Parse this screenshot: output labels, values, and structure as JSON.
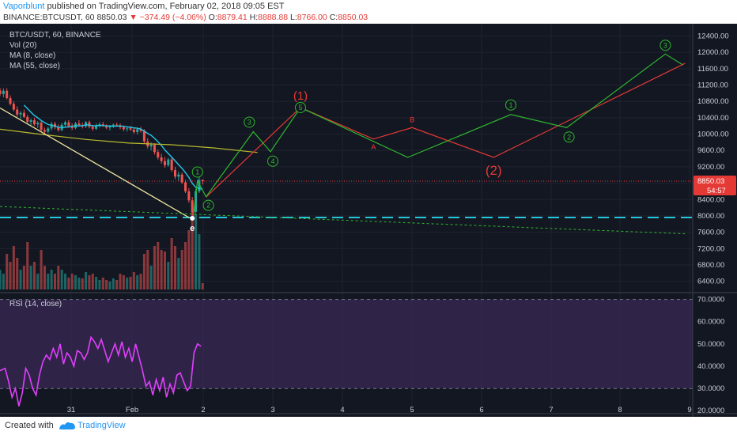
{
  "header": {
    "author": "Vaporblunt",
    "published_text": "published on TradingView.com, February 02, 2018 09:05 EST",
    "symbol": "BINANCE:BTCUSDT, 60",
    "last_price": "8850.03",
    "change": "−374.49 (−4.06%)",
    "o_label": "O:",
    "o_value": "8879.41",
    "h_label": "H:",
    "h_value": "8888.88",
    "l_label": "L:",
    "l_value": "8766.00",
    "c_label": "C:",
    "c_value": "8850.03"
  },
  "legend": {
    "title": "BTC/USDT, 60, BINANCE",
    "vol": "Vol (20)",
    "ma8": "MA (8, close)",
    "ma55": "MA (55, close)"
  },
  "rsi_legend": "RSI (14, close)",
  "price_tag": {
    "value": "8850.03",
    "countdown": "54:57"
  },
  "footer": {
    "created": "Created with",
    "brand": "TradingView"
  },
  "colors": {
    "background": "#131722",
    "bull": "#26a69a",
    "bear": "#ef5350",
    "ma8": "#22c7e8",
    "ma55": "#b9b92e",
    "rsi": "#e040fb",
    "rsi_band": "#3a2a55",
    "support": "#26c6da",
    "green_path": "#2eb82e",
    "red_path": "#e53935"
  },
  "chart_data": {
    "type": "candlestick",
    "x_ticks": [
      "31",
      "Feb",
      "2",
      "3",
      "4",
      "5",
      "6",
      "7",
      "8",
      "9"
    ],
    "y_ticks": [
      "12400.00",
      "12000.00",
      "11600.00",
      "11200.00",
      "10800.00",
      "10400.00",
      "10000.00",
      "9600.00",
      "9200.00",
      "8800.00",
      "8400.00",
      "8000.00",
      "7600.00",
      "7200.00",
      "6800.00",
      "6400.00"
    ],
    "y_range": [
      6200,
      12700
    ],
    "rsi_ticks": [
      "70.0000",
      "60.0000",
      "50.0000",
      "40.0000",
      "30.0000",
      "20.0000"
    ],
    "rsi_range": [
      19,
      72
    ],
    "rsi_levels": [
      70,
      30
    ],
    "support_level": 7960,
    "last_price": 8850.03,
    "ma55": [
      [
        30.0,
        10120
      ],
      [
        30.5,
        9990
      ],
      [
        31.0,
        9870
      ],
      [
        31.5,
        9780
      ],
      [
        32.0,
        9740
      ],
      [
        32.5,
        9660
      ],
      [
        33.0,
        9550
      ]
    ],
    "green_path_labels": [
      "1",
      "2",
      "3",
      "4",
      "5",
      "1",
      "2",
      "3"
    ],
    "green_path": [
      [
        32.25,
        7960
      ],
      [
        32.3,
        8860
      ],
      [
        32.4,
        8470
      ],
      [
        32.95,
        10060
      ],
      [
        33.15,
        9570
      ],
      [
        33.5,
        10650
      ],
      [
        34.75,
        9430
      ],
      [
        35.95,
        10480
      ],
      [
        36.6,
        10160
      ],
      [
        37.75,
        11960
      ],
      [
        37.95,
        11700
      ]
    ],
    "red_path_labels": [
      "(1)",
      "A",
      "B",
      "(2)"
    ],
    "red_path": [
      [
        32.4,
        8460
      ],
      [
        33.5,
        10650
      ],
      [
        34.35,
        9880
      ],
      [
        34.8,
        10160
      ],
      [
        35.75,
        9430
      ],
      [
        37.98,
        11730
      ]
    ],
    "wedge_upper": [
      [
        30.0,
        10640
      ],
      [
        32.2,
        7960
      ]
    ],
    "wedge_lower": [
      [
        30.0,
        8230
      ],
      [
        38.0,
        7560
      ]
    ],
    "wave_e_label": "e",
    "candles": [
      [
        30.0,
        11070,
        11130,
        10930,
        10980
      ],
      [
        30.04,
        10980,
        11120,
        10900,
        11060
      ],
      [
        30.08,
        11060,
        11120,
        10850,
        10880
      ],
      [
        30.12,
        10880,
        10950,
        10700,
        10740
      ],
      [
        30.16,
        10740,
        10800,
        10560,
        10600
      ],
      [
        30.2,
        10600,
        10680,
        10420,
        10480
      ],
      [
        30.24,
        10480,
        10560,
        10380,
        10520
      ],
      [
        30.28,
        10520,
        10600,
        10390,
        10420
      ],
      [
        30.32,
        10420,
        10470,
        10260,
        10300
      ],
      [
        30.36,
        10300,
        10380,
        10220,
        10340
      ],
      [
        30.4,
        10340,
        10400,
        10200,
        10240
      ],
      [
        30.44,
        10240,
        10320,
        10150,
        10280
      ],
      [
        30.48,
        10280,
        10330,
        10060,
        10100
      ],
      [
        30.52,
        10100,
        10160,
        9980,
        10060
      ],
      [
        30.56,
        10060,
        10180,
        10020,
        10140
      ],
      [
        30.6,
        10140,
        10300,
        10090,
        10250
      ],
      [
        30.64,
        10250,
        10300,
        10120,
        10170
      ],
      [
        30.68,
        10170,
        10240,
        10060,
        10100
      ],
      [
        30.72,
        10100,
        10280,
        10070,
        10230
      ],
      [
        30.76,
        10230,
        10330,
        10180,
        10290
      ],
      [
        30.8,
        10290,
        10340,
        10150,
        10200
      ],
      [
        30.84,
        10200,
        10260,
        10100,
        10150
      ],
      [
        30.88,
        10150,
        10300,
        10120,
        10260
      ],
      [
        30.92,
        10260,
        10340,
        10180,
        10220
      ],
      [
        30.96,
        10220,
        10280,
        10140,
        10190
      ],
      [
        31.0,
        10190,
        10320,
        10150,
        10290
      ],
      [
        31.04,
        10290,
        10330,
        10140,
        10180
      ],
      [
        31.08,
        10180,
        10230,
        10080,
        10130
      ],
      [
        31.12,
        10130,
        10260,
        10100,
        10210
      ],
      [
        31.16,
        10210,
        10290,
        10160,
        10240
      ],
      [
        31.2,
        10240,
        10300,
        10180,
        10200
      ],
      [
        31.24,
        10200,
        10240,
        10120,
        10160
      ],
      [
        31.28,
        10160,
        10220,
        10090,
        10190
      ],
      [
        31.32,
        10190,
        10260,
        10150,
        10230
      ],
      [
        31.36,
        10230,
        10280,
        10180,
        10210
      ],
      [
        31.4,
        10210,
        10260,
        10120,
        10170
      ],
      [
        31.44,
        10170,
        10210,
        10070,
        10120
      ],
      [
        31.48,
        10120,
        10180,
        10060,
        10140
      ],
      [
        31.52,
        10140,
        10200,
        10080,
        10110
      ],
      [
        31.56,
        10110,
        10160,
        10010,
        10050
      ],
      [
        31.6,
        10050,
        10150,
        9990,
        10120
      ],
      [
        31.64,
        10120,
        10180,
        10040,
        10080
      ],
      [
        31.68,
        10080,
        10120,
        9780,
        9820
      ],
      [
        31.72,
        9820,
        9900,
        9650,
        9700
      ],
      [
        31.76,
        9700,
        9800,
        9600,
        9740
      ],
      [
        31.8,
        9740,
        9780,
        9500,
        9560
      ],
      [
        31.84,
        9560,
        9620,
        9380,
        9430
      ],
      [
        31.88,
        9430,
        9520,
        9280,
        9340
      ],
      [
        31.92,
        9340,
        9440,
        9180,
        9240
      ],
      [
        31.96,
        9240,
        9420,
        9200,
        9380
      ],
      [
        32.0,
        9380,
        9440,
        9080,
        9120
      ],
      [
        32.04,
        9120,
        9200,
        8900,
        8960
      ],
      [
        32.08,
        8960,
        9080,
        8860,
        9010
      ],
      [
        32.12,
        9010,
        9060,
        8780,
        8820
      ],
      [
        32.16,
        8820,
        8880,
        8560,
        8600
      ],
      [
        32.2,
        8600,
        8680,
        8320,
        8380
      ],
      [
        32.24,
        8380,
        8460,
        7930,
        8100
      ],
      [
        32.28,
        8100,
        8660,
        8060,
        8600
      ],
      [
        32.32,
        8600,
        8960,
        8560,
        8880
      ],
      [
        32.36,
        8880,
        8890,
        8766,
        8850
      ]
    ],
    "volume": [
      [
        30.0,
        0.25,
        1
      ],
      [
        30.04,
        0.2,
        1
      ],
      [
        30.08,
        0.45,
        0
      ],
      [
        30.12,
        0.35,
        0
      ],
      [
        30.16,
        0.55,
        0
      ],
      [
        30.2,
        0.4,
        0
      ],
      [
        30.24,
        0.25,
        1
      ],
      [
        30.28,
        0.3,
        0
      ],
      [
        30.32,
        0.6,
        0
      ],
      [
        30.36,
        0.3,
        1
      ],
      [
        30.4,
        0.35,
        0
      ],
      [
        30.44,
        0.2,
        1
      ],
      [
        30.48,
        0.5,
        0
      ],
      [
        30.52,
        0.3,
        0
      ],
      [
        30.56,
        0.2,
        1
      ],
      [
        30.6,
        0.25,
        1
      ],
      [
        30.64,
        0.2,
        0
      ],
      [
        30.68,
        0.3,
        0
      ],
      [
        30.72,
        0.25,
        1
      ],
      [
        30.76,
        0.2,
        1
      ],
      [
        30.8,
        0.15,
        0
      ],
      [
        30.84,
        0.2,
        0
      ],
      [
        30.88,
        0.18,
        1
      ],
      [
        30.92,
        0.15,
        1
      ],
      [
        30.96,
        0.14,
        0
      ],
      [
        31.0,
        0.22,
        1
      ],
      [
        31.04,
        0.18,
        0
      ],
      [
        31.08,
        0.2,
        0
      ],
      [
        31.12,
        0.16,
        1
      ],
      [
        31.16,
        0.12,
        1
      ],
      [
        31.2,
        0.15,
        0
      ],
      [
        31.24,
        0.12,
        0
      ],
      [
        31.28,
        0.1,
        1
      ],
      [
        31.32,
        0.14,
        1
      ],
      [
        31.36,
        0.12,
        0
      ],
      [
        31.4,
        0.2,
        0
      ],
      [
        31.44,
        0.18,
        0
      ],
      [
        31.48,
        0.15,
        1
      ],
      [
        31.52,
        0.16,
        0
      ],
      [
        31.56,
        0.22,
        0
      ],
      [
        31.6,
        0.18,
        1
      ],
      [
        31.64,
        0.2,
        0
      ],
      [
        31.68,
        0.45,
        0
      ],
      [
        31.72,
        0.5,
        0
      ],
      [
        31.76,
        0.3,
        1
      ],
      [
        31.8,
        0.55,
        0
      ],
      [
        31.84,
        0.6,
        0
      ],
      [
        31.88,
        0.5,
        0
      ],
      [
        31.92,
        0.48,
        0
      ],
      [
        31.96,
        0.35,
        1
      ],
      [
        32.0,
        0.65,
        0
      ],
      [
        32.04,
        0.55,
        0
      ],
      [
        32.08,
        0.4,
        1
      ],
      [
        32.12,
        0.5,
        0
      ],
      [
        32.16,
        0.6,
        0
      ],
      [
        32.2,
        0.75,
        0
      ],
      [
        32.24,
        1.0,
        0
      ],
      [
        32.28,
        0.95,
        1
      ],
      [
        32.32,
        0.7,
        1
      ],
      [
        32.36,
        0.08,
        0
      ]
    ],
    "rsi": [
      [
        30.0,
        38
      ],
      [
        30.06,
        39
      ],
      [
        30.1,
        33
      ],
      [
        30.14,
        26
      ],
      [
        30.18,
        30
      ],
      [
        30.22,
        22
      ],
      [
        30.26,
        28
      ],
      [
        30.3,
        39
      ],
      [
        30.34,
        36
      ],
      [
        30.38,
        30
      ],
      [
        30.42,
        27
      ],
      [
        30.46,
        36
      ],
      [
        30.5,
        42
      ],
      [
        30.54,
        45
      ],
      [
        30.58,
        43
      ],
      [
        30.62,
        48
      ],
      [
        30.66,
        44
      ],
      [
        30.7,
        50
      ],
      [
        30.74,
        41
      ],
      [
        30.78,
        46
      ],
      [
        30.82,
        44
      ],
      [
        30.86,
        40
      ],
      [
        30.9,
        47
      ],
      [
        30.94,
        46
      ],
      [
        30.98,
        43
      ],
      [
        31.02,
        46
      ],
      [
        31.06,
        53
      ],
      [
        31.1,
        51
      ],
      [
        31.14,
        48
      ],
      [
        31.18,
        52
      ],
      [
        31.22,
        47
      ],
      [
        31.26,
        42
      ],
      [
        31.3,
        46
      ],
      [
        31.34,
        50
      ],
      [
        31.38,
        45
      ],
      [
        31.42,
        51
      ],
      [
        31.46,
        44
      ],
      [
        31.5,
        48
      ],
      [
        31.54,
        42
      ],
      [
        31.58,
        50
      ],
      [
        31.62,
        44
      ],
      [
        31.66,
        38
      ],
      [
        31.7,
        31
      ],
      [
        31.74,
        33
      ],
      [
        31.78,
        27
      ],
      [
        31.82,
        34
      ],
      [
        31.86,
        29
      ],
      [
        31.9,
        35
      ],
      [
        31.94,
        26
      ],
      [
        31.98,
        32
      ],
      [
        32.02,
        28
      ],
      [
        32.06,
        36
      ],
      [
        32.1,
        37
      ],
      [
        32.14,
        33
      ],
      [
        32.18,
        29
      ],
      [
        32.22,
        31
      ],
      [
        32.26,
        46
      ],
      [
        32.3,
        50
      ],
      [
        32.34,
        49
      ]
    ]
  }
}
